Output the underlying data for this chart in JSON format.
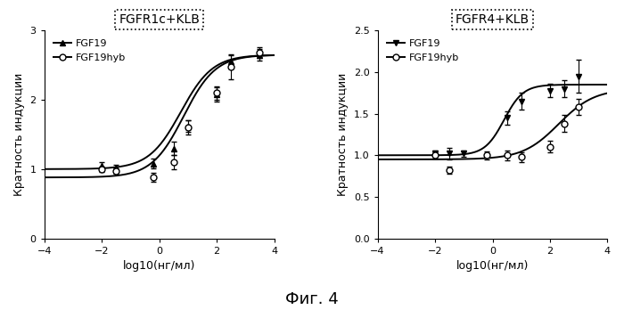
{
  "left_title": "FGFR1c+KLB",
  "right_title": "FGFR4+KLB",
  "xlabel": "log10(нг/мл)",
  "ylabel": "Кратность индукции",
  "fig_label": "Фиг. 4",
  "left_xlim": [
    -4,
    4
  ],
  "left_ylim": [
    0,
    3
  ],
  "right_xlim": [
    -4,
    4
  ],
  "right_ylim": [
    0.0,
    2.5
  ],
  "left_yticks": [
    0,
    1,
    2,
    3
  ],
  "right_yticks": [
    0.0,
    0.5,
    1.0,
    1.5,
    2.0,
    2.5
  ],
  "xticks": [
    -4,
    -2,
    0,
    2,
    4
  ],
  "left_fgf19_x": [
    -2.0,
    -1.5,
    -0.2,
    0.5,
    1.0,
    2.0,
    2.5,
    3.5
  ],
  "left_fgf19_y": [
    1.05,
    1.02,
    1.08,
    1.3,
    1.62,
    2.08,
    2.55,
    2.65
  ],
  "left_fgf19_yerr": [
    0.05,
    0.04,
    0.07,
    0.1,
    0.08,
    0.1,
    0.1,
    0.08
  ],
  "left_hyb_x": [
    -2.0,
    -1.5,
    -0.2,
    0.5,
    1.0,
    2.0,
    2.5,
    3.5
  ],
  "left_hyb_y": [
    1.0,
    0.97,
    0.88,
    1.1,
    1.6,
    2.1,
    2.48,
    2.68
  ],
  "left_hyb_yerr": [
    0.04,
    0.04,
    0.06,
    0.1,
    0.1,
    0.1,
    0.18,
    0.08
  ],
  "left_fgf19_curve": {
    "x0": 0.75,
    "k": 1.8,
    "ymin": 1.0,
    "ymax": 2.65
  },
  "left_hyb_curve": {
    "x0": 0.85,
    "k": 1.8,
    "ymin": 0.88,
    "ymax": 2.65
  },
  "right_fgf19_x": [
    -2.0,
    -1.5,
    -1.0,
    0.5,
    1.0,
    2.0,
    2.5,
    3.0
  ],
  "right_fgf19_y": [
    1.02,
    1.02,
    1.02,
    1.45,
    1.65,
    1.78,
    1.8,
    1.95
  ],
  "right_fgf19_yerr": [
    0.04,
    0.07,
    0.04,
    0.08,
    0.1,
    0.08,
    0.1,
    0.2
  ],
  "right_hyb_x": [
    -2.0,
    -1.5,
    -0.2,
    0.5,
    1.0,
    2.0,
    2.5,
    3.0
  ],
  "right_hyb_y": [
    1.0,
    0.82,
    1.0,
    1.0,
    0.98,
    1.1,
    1.38,
    1.58
  ],
  "right_hyb_yerr": [
    0.04,
    0.04,
    0.05,
    0.06,
    0.06,
    0.07,
    0.1,
    0.1
  ],
  "right_fgf19_curve": {
    "x0": 0.4,
    "k": 3.0,
    "ymin": 1.0,
    "ymax": 1.85
  },
  "right_hyb_curve": {
    "x0": 2.3,
    "k": 1.6,
    "ymin": 0.95,
    "ymax": 1.8
  },
  "bg_color": "#ffffff"
}
